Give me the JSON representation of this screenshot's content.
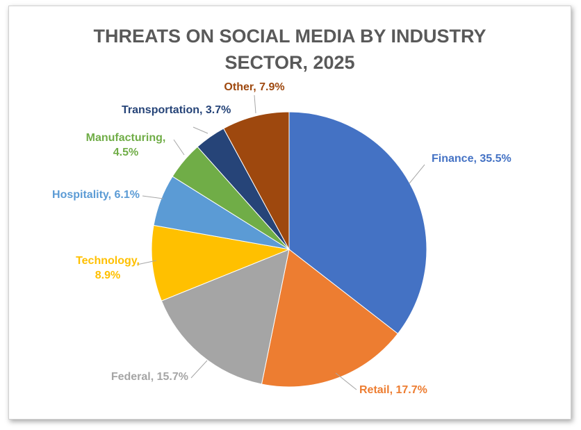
{
  "chart_data": {
    "type": "pie",
    "title_lines": [
      "THREATS ON SOCIAL MEDIA BY INDUSTRY",
      "SECTOR, 2025"
    ],
    "slices": [
      {
        "name": "Finance",
        "value": 35.5,
        "color": "#4472c4",
        "label_lines": [
          "Finance, 35.5%"
        ]
      },
      {
        "name": "Retail",
        "value": 17.7,
        "color": "#ed7d31",
        "label_lines": [
          "Retail, 17.7%"
        ]
      },
      {
        "name": "Federal",
        "value": 15.7,
        "color": "#a5a5a5",
        "label_lines": [
          "Federal, 15.7%"
        ]
      },
      {
        "name": "Technology",
        "value": 8.9,
        "color": "#ffc000",
        "label_lines": [
          "Technology,",
          "8.9%"
        ]
      },
      {
        "name": "Hospitality",
        "value": 6.1,
        "color": "#5b9bd5",
        "label_lines": [
          "Hospitality, 6.1%"
        ]
      },
      {
        "name": "Manufacturing",
        "value": 4.5,
        "color": "#70ad47",
        "label_lines": [
          "Manufacturing,",
          "4.5%"
        ]
      },
      {
        "name": "Transportation",
        "value": 3.7,
        "color": "#264478",
        "label_lines": [
          "Transportation, 3.7%"
        ]
      },
      {
        "name": "Other",
        "value": 7.9,
        "color": "#9e480e",
        "label_lines": [
          "Other, 7.9%"
        ]
      }
    ]
  }
}
